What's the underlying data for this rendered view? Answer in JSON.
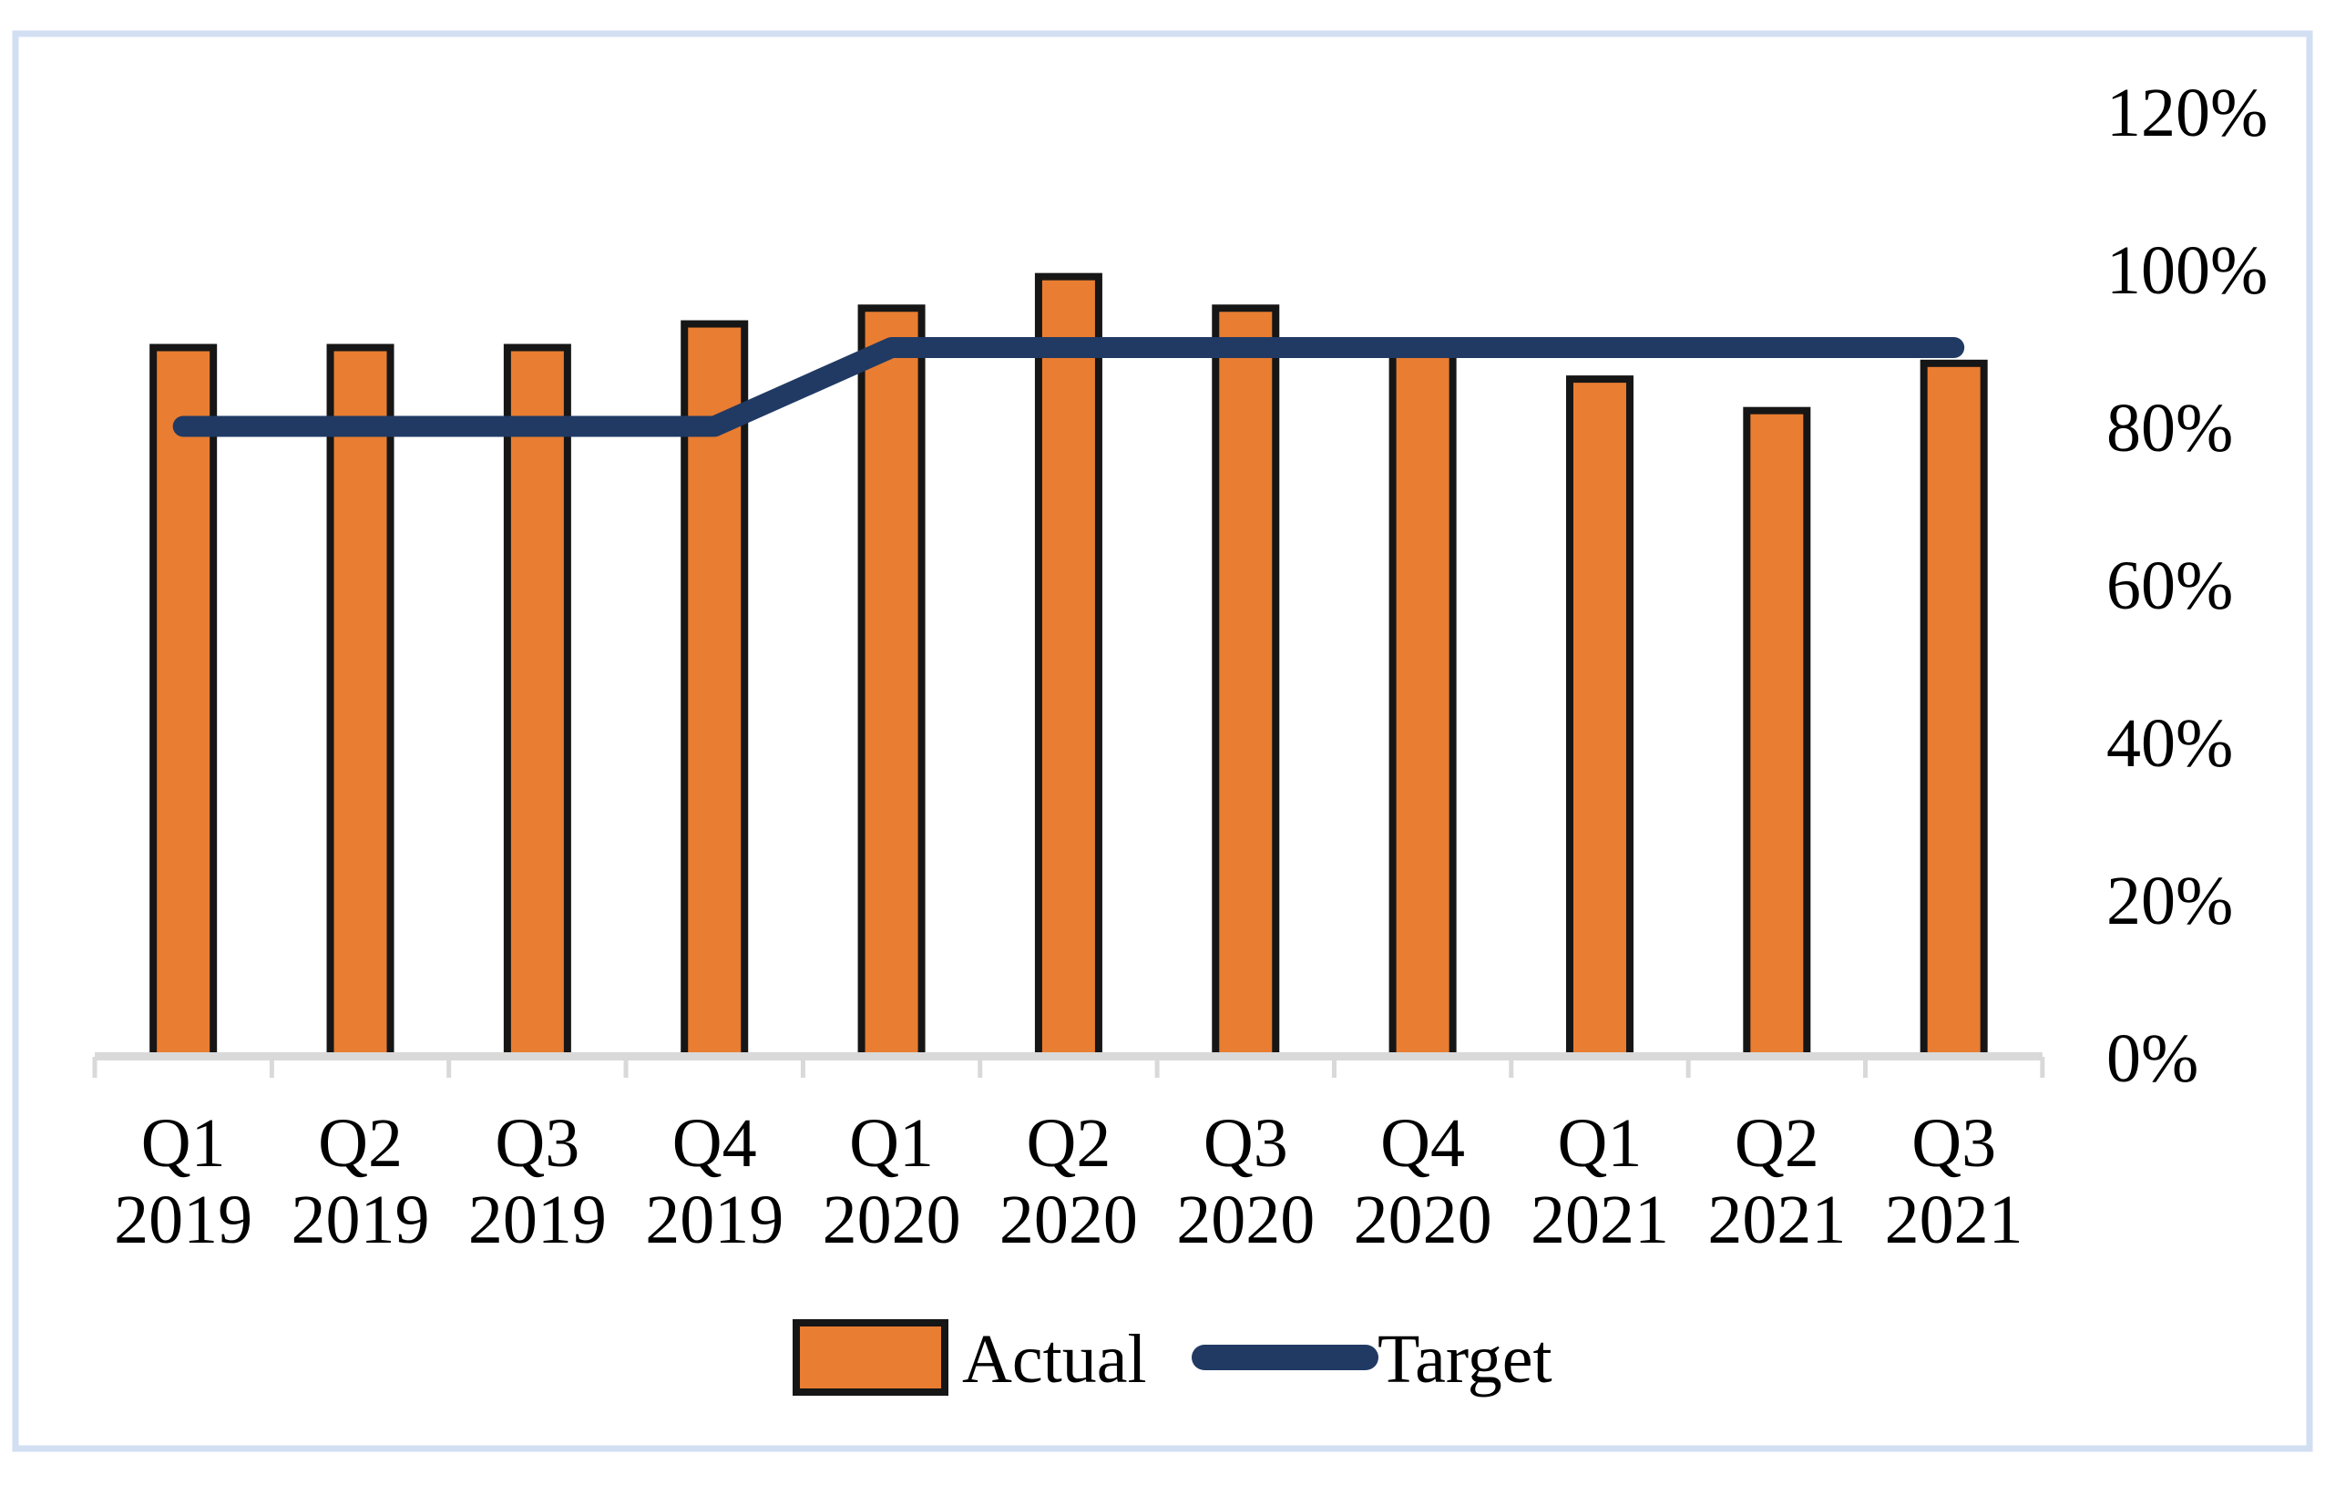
{
  "chart_data": {
    "type": "combo-bar-line",
    "title": "",
    "categories": [
      {
        "quarter": "Q1",
        "year": "2019"
      },
      {
        "quarter": "Q2",
        "year": "2019"
      },
      {
        "quarter": "Q3",
        "year": "2019"
      },
      {
        "quarter": "Q4",
        "year": "2019"
      },
      {
        "quarter": "Q1",
        "year": "2020"
      },
      {
        "quarter": "Q2",
        "year": "2020"
      },
      {
        "quarter": "Q3",
        "year": "2020"
      },
      {
        "quarter": "Q4",
        "year": "2020"
      },
      {
        "quarter": "Q1",
        "year": "2021"
      },
      {
        "quarter": "Q2",
        "year": "2021"
      },
      {
        "quarter": "Q3",
        "year": "2021"
      }
    ],
    "series": [
      {
        "name": "Actual",
        "type": "bar",
        "unit": "%",
        "values": [
          90,
          90,
          90,
          93,
          95,
          99,
          95,
          90,
          86,
          82,
          88
        ]
      },
      {
        "name": "Target",
        "type": "line",
        "unit": "%",
        "values": [
          80,
          80,
          80,
          80,
          90,
          90,
          90,
          90,
          90,
          90,
          90
        ]
      }
    ],
    "y_axis": {
      "side": "right",
      "min": 0,
      "max": 120,
      "step": 20,
      "tick_labels": [
        "0%",
        "20%",
        "40%",
        "60%",
        "80%",
        "100%",
        "120%"
      ]
    },
    "x_axis": {
      "two_line_labels": true
    },
    "legend": {
      "position": "bottom",
      "entries": [
        "Actual",
        "Target"
      ]
    },
    "grid": false
  },
  "colors": {
    "bar_fill": "#E97D31",
    "bar_border": "#161616",
    "line": "#203A64",
    "axis": "#D9D9D9",
    "frame_border": "#D2DEF2",
    "text": "#000000",
    "background": "#FFFFFF"
  }
}
